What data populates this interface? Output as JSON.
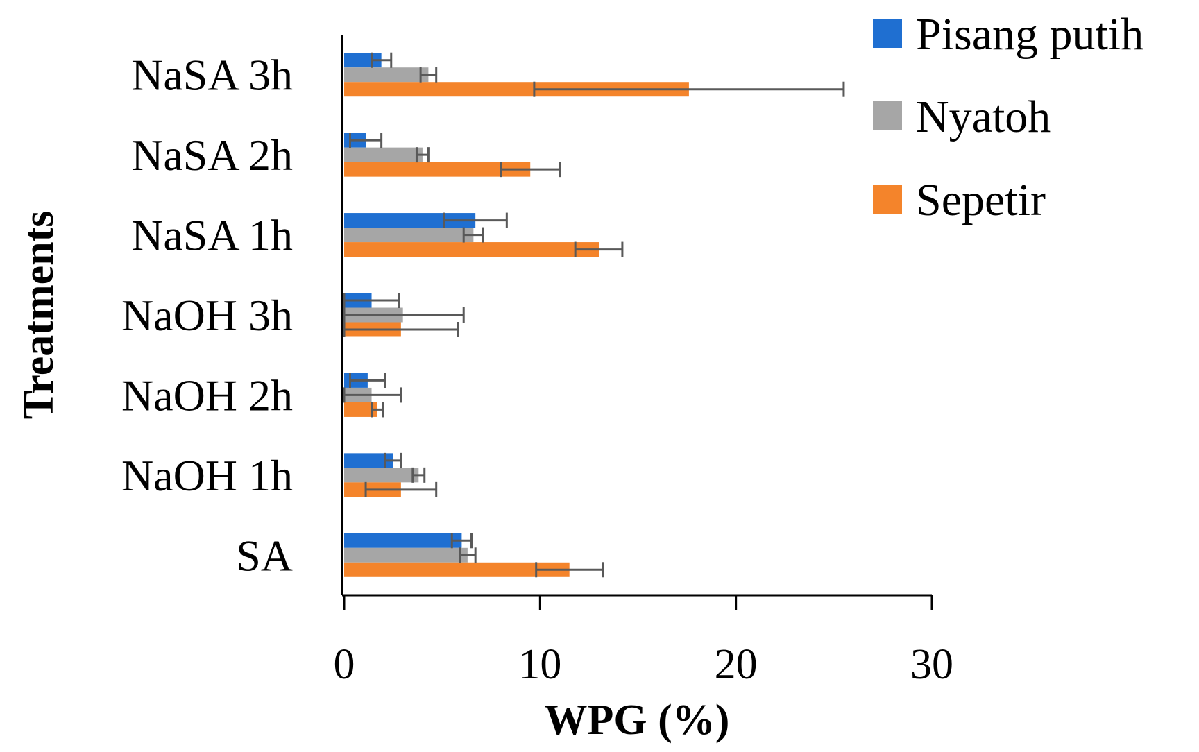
{
  "chart_data": {
    "type": "bar",
    "orientation": "horizontal",
    "title": "",
    "xlabel": "WPG (%)",
    "ylabel": "Treatments",
    "xlim": [
      0,
      30
    ],
    "xticks": [
      "0",
      "10",
      "20",
      "30"
    ],
    "xtick_values": [
      0,
      10,
      20,
      30
    ],
    "categories": [
      "SA",
      "NaOH 1h",
      "NaOH 2h",
      "NaOH 3h",
      "NaSA 1h",
      "NaSA 2h",
      "NaSA 3h"
    ],
    "series": [
      {
        "name": "Pisang putih",
        "color": "#1f6fd1",
        "values": [
          6.0,
          2.5,
          1.2,
          1.4,
          6.7,
          1.1,
          1.9
        ],
        "errors": [
          0.5,
          0.4,
          0.9,
          1.4,
          1.6,
          0.8,
          0.5
        ]
      },
      {
        "name": "Nyatoh",
        "color": "#a6a6a6",
        "values": [
          6.3,
          3.8,
          1.4,
          3.0,
          6.6,
          4.0,
          4.3
        ],
        "errors": [
          0.4,
          0.3,
          1.5,
          3.1,
          0.5,
          0.3,
          0.4
        ]
      },
      {
        "name": "Sepetir",
        "color": "#f4842b",
        "values": [
          11.5,
          2.9,
          1.7,
          2.9,
          13.0,
          9.5,
          17.6
        ],
        "errors": [
          1.7,
          1.8,
          0.3,
          2.9,
          1.2,
          1.5,
          7.9
        ]
      }
    ],
    "grid": false,
    "legend": "top-right"
  }
}
